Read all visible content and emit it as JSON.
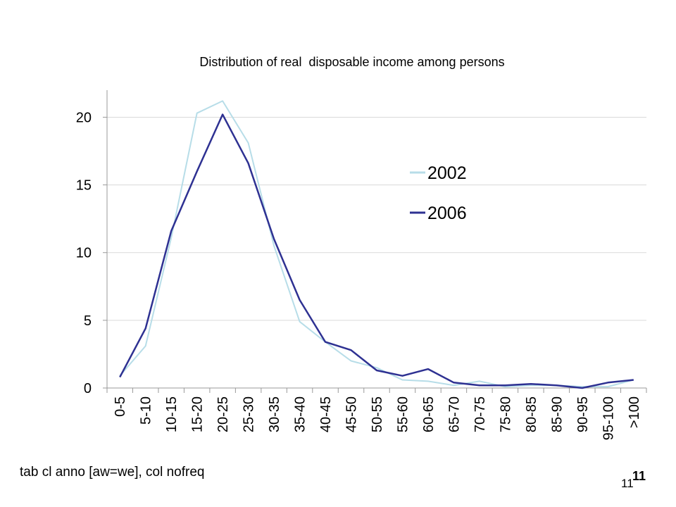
{
  "chart_data": {
    "type": "line",
    "title": "Distribution of real  disposable income among persons",
    "xlabel": "",
    "ylabel": "",
    "ylim": [
      0,
      22
    ],
    "yticks": [
      0,
      5,
      10,
      15,
      20
    ],
    "categories": [
      "0-5",
      "5-10",
      "10-15",
      "15-20",
      "20-25",
      "25-30",
      "30-35",
      "35-40",
      "40-45",
      "45-50",
      "50-55",
      "55-60",
      "60-65",
      "65-70",
      "70-75",
      "75-80",
      "80-85",
      "85-90",
      "90-95",
      "95-100",
      ">100"
    ],
    "series": [
      {
        "name": "2002",
        "color": "#b7dde8",
        "values": [
          0.9,
          3.1,
          11.1,
          20.3,
          21.2,
          18.1,
          10.5,
          4.9,
          3.4,
          2.0,
          1.5,
          0.6,
          0.5,
          0.2,
          0.5,
          0.1,
          0.2,
          0.2,
          0.1,
          0.1,
          0.6
        ]
      },
      {
        "name": "2006",
        "color": "#2e3192",
        "values": [
          0.8,
          4.4,
          11.6,
          16.0,
          20.2,
          16.6,
          11.0,
          6.5,
          3.4,
          2.8,
          1.3,
          0.9,
          1.4,
          0.4,
          0.2,
          0.2,
          0.3,
          0.2,
          0.0,
          0.4,
          0.6
        ]
      }
    ],
    "legend_position": "right",
    "grid": "horizontal"
  },
  "footnote": "tab cl anno [aw=we], col nofreq",
  "page_number_small": "11",
  "page_number_bold": "11"
}
